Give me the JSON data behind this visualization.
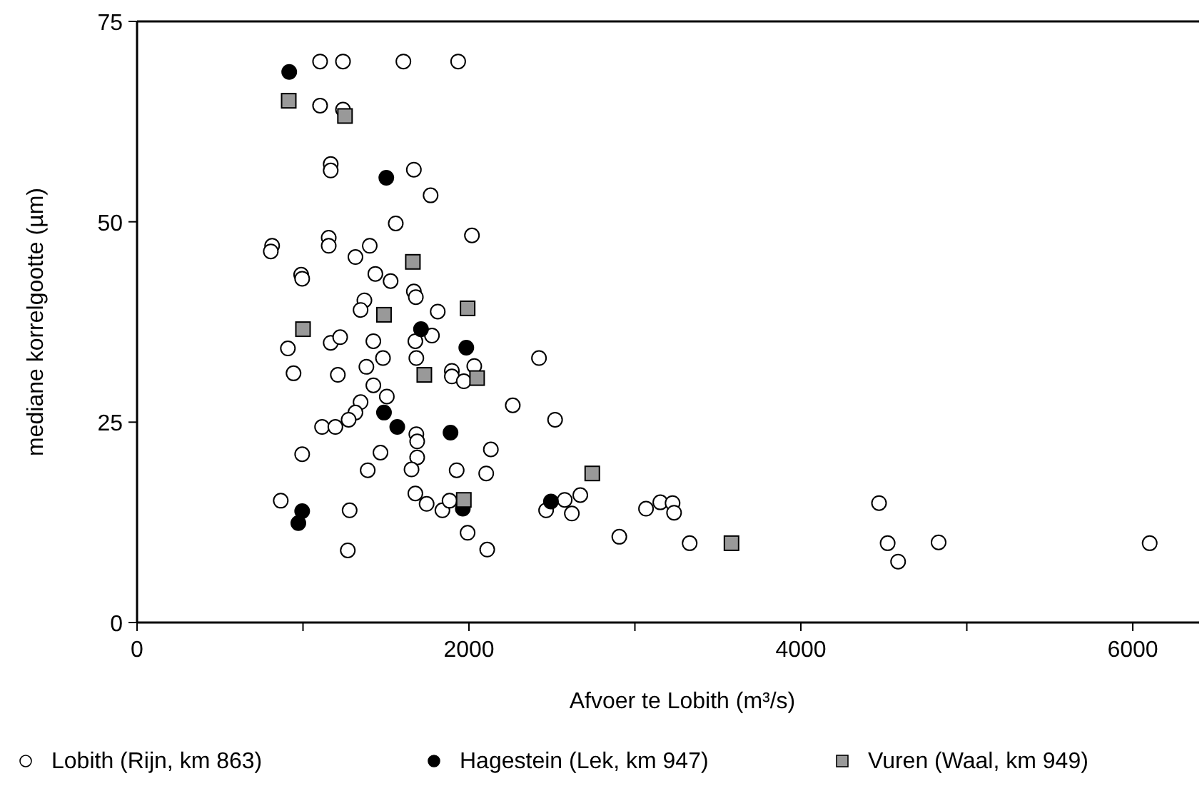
{
  "chart_data": {
    "type": "scatter",
    "xlabel": "Afvoer te Lobith (m³/s)",
    "ylabel": "mediane korrelgootte (µm)",
    "xlim": [
      0,
      6400
    ],
    "xticks": [
      0,
      {
        "value": 1000,
        "label": null
      },
      2000,
      {
        "value": 3000,
        "label": null
      },
      4000,
      {
        "value": 5000,
        "label": null
      },
      6000
    ],
    "ylim": [
      0,
      75
    ],
    "yticks": [
      0,
      25,
      50,
      75
    ],
    "grid": false,
    "legend": "bottom",
    "series": [
      {
        "name": "Lobith (Rijn, km 863)",
        "color": "#ffffff",
        "marker": "circle",
        "x": [
          1103,
          1241,
          1605,
          1935,
          1103,
          1241,
          1167,
          1167,
          1668,
          1769,
          1559,
          2018,
          814,
          806,
          1155,
          1155,
          1402,
          1316,
          989,
          995,
          1436,
          1528,
          1668,
          1680,
          1370,
          1347,
          1812,
          909,
          1167,
          1224,
          1424,
          1482,
          1382,
          943,
          1210,
          1677,
          1777,
          1683,
          1897,
          1897,
          1969,
          2032,
          1424,
          1505,
          1347,
          1316,
          1275,
          1115,
          1195,
          1683,
          1688,
          1688,
          1654,
          1467,
          995,
          1390,
          1926,
          866,
          1281,
          1677,
          1745,
          1840,
          1883,
          1992,
          1270,
          2422,
          2264,
          2519,
          2132,
          2104,
          2110,
          2465,
          2577,
          2671,
          2620,
          2906,
          3067,
          3153,
          3227,
          3236,
          3330,
          4471,
          4523,
          4586,
          4830,
          6102
        ],
        "values": [
          70,
          70,
          70,
          70,
          64.5,
          64,
          57.2,
          56.4,
          56.5,
          53.3,
          49.8,
          48.3,
          47,
          46.3,
          48,
          47,
          47,
          45.6,
          43.4,
          42.9,
          43.5,
          42.6,
          41.3,
          40.6,
          40.2,
          39,
          38.8,
          34.2,
          34.9,
          35.6,
          35.1,
          33,
          31.9,
          31.1,
          30.9,
          35.1,
          35.8,
          33,
          31.4,
          30.7,
          30.1,
          32,
          29.6,
          28.2,
          27.5,
          26.2,
          25.3,
          24.4,
          24.4,
          23.5,
          22.6,
          20.6,
          19.1,
          21.2,
          21,
          19,
          19,
          15.2,
          14,
          16.1,
          14.8,
          14,
          15.2,
          11.2,
          9,
          33,
          27.1,
          25.3,
          21.6,
          18.6,
          9.1,
          14,
          15.3,
          15.9,
          13.6,
          10.7,
          14.2,
          15,
          14.9,
          13.7,
          9.9,
          14.9,
          9.9,
          7.6,
          10,
          9.9
        ]
      },
      {
        "name": "Hagestein (Lek, km 947)",
        "color": "#000000",
        "marker": "circle",
        "x": [
          917,
          1502,
          1711,
          1984,
          1488,
          1568,
          1889,
          1963,
          995,
          972,
          2494
        ],
        "values": [
          68.7,
          55.5,
          36.6,
          34.3,
          26.2,
          24.4,
          23.7,
          14.2,
          13.9,
          12.4,
          15.1
        ]
      },
      {
        "name": "Vuren (Waal, km 949)",
        "color": "#999999",
        "marker": "square",
        "x": [
          914,
          1253,
          1662,
          1992,
          1488,
          1000,
          1731,
          2049,
          1969,
          2743,
          3582
        ],
        "values": [
          65.1,
          63.2,
          45,
          39.2,
          38.4,
          36.6,
          30.9,
          30.5,
          15.3,
          18.6,
          9.9
        ]
      }
    ]
  }
}
